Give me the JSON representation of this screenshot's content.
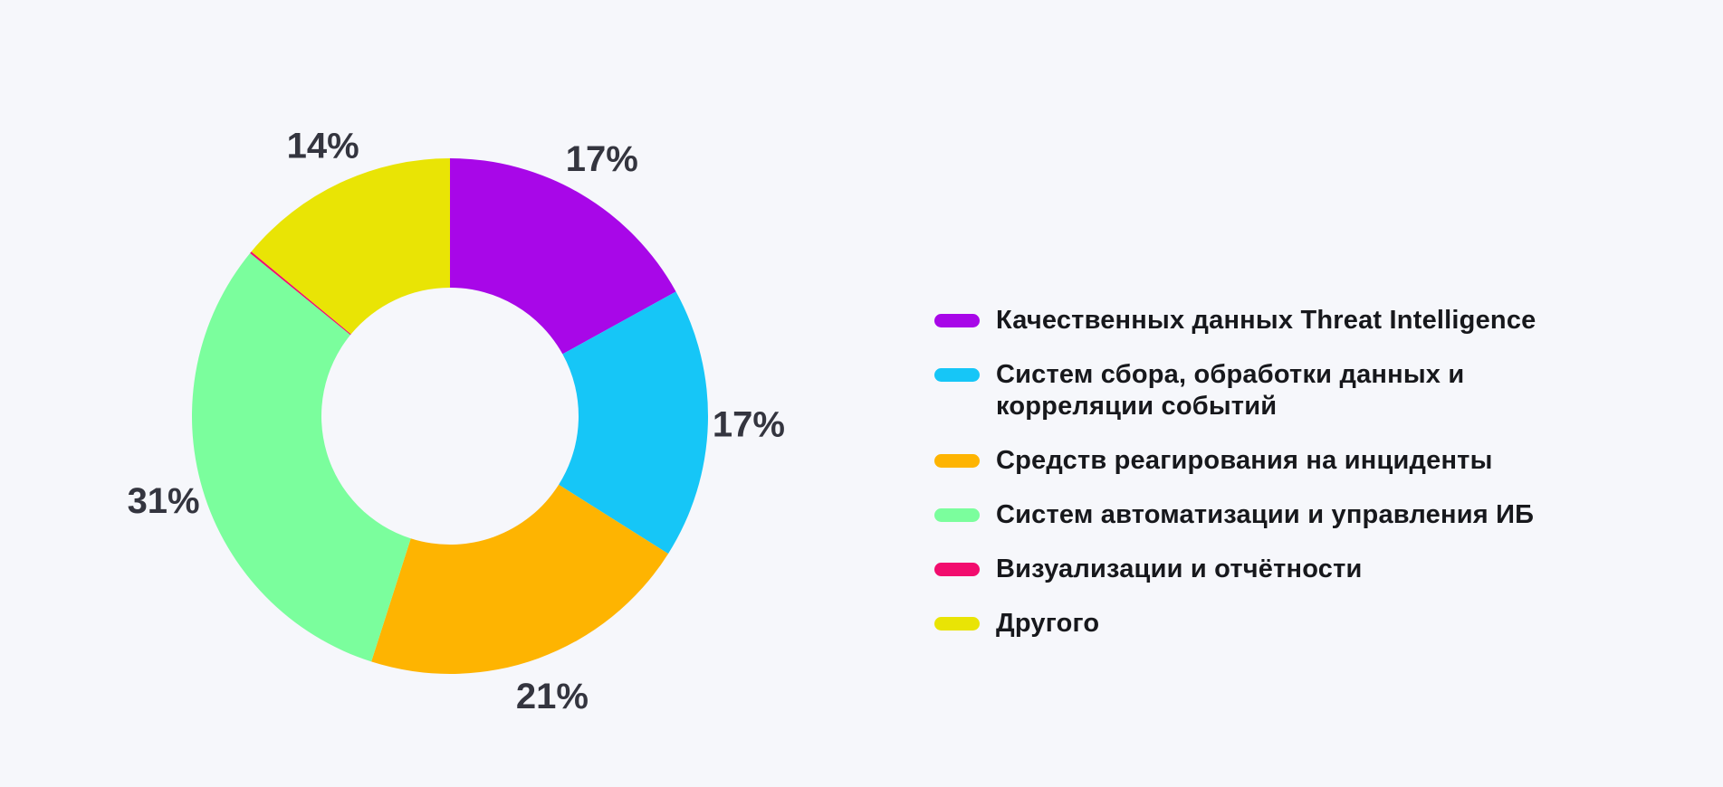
{
  "page": {
    "background_color": "#F6F7FB"
  },
  "colors": {
    "percent_label_text": "#34353F",
    "legend_text": "#17181C"
  },
  "chart_data": {
    "type": "pie",
    "subtype": "donut",
    "title": "",
    "legend_position": "right",
    "donut_hole_ratio": 0.5,
    "start_angle": "12-oclock",
    "direction": "clockwise",
    "categories": [
      "Качественных данных Threat Intelligence",
      "Систем сбора, обработки данных и\nкорреляции событий",
      "Средств реагирования на инциденты",
      "Систем автоматизации и управления ИБ",
      "Визуализации и отчётности",
      "Другого"
    ],
    "values": [
      17,
      17,
      21,
      31,
      0,
      14
    ],
    "value_labels": [
      "17%",
      "17%",
      "21%",
      "31%",
      "",
      "14%"
    ],
    "slice_colors": [
      "#A807E8",
      "#16C6F7",
      "#FEB401",
      "#7BFE9D",
      "#F20D6E",
      "#E9E405"
    ]
  }
}
